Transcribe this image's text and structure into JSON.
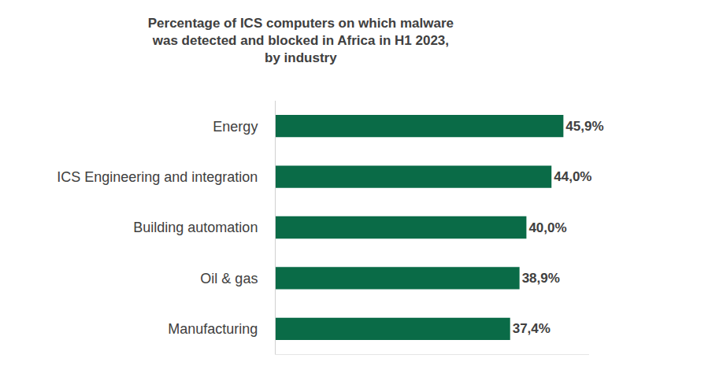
{
  "chart_data": {
    "type": "bar",
    "orientation": "horizontal",
    "title": "Percentage of ICS computers on which malware\nwas detected and blocked in Africa in H1 2023,\nby industry",
    "categories": [
      "Energy",
      "ICS Engineering and integration",
      "Building automation",
      "Oil & gas",
      "Manufacturing"
    ],
    "values": [
      45.9,
      44.0,
      40.0,
      38.9,
      37.4
    ],
    "value_labels": [
      "45,9%",
      "44,0%",
      "40,0%",
      "38,9%",
      "37,4%"
    ],
    "data_labels": true,
    "color": "#0a6b47",
    "xlim": [
      0,
      50
    ],
    "grid": false,
    "tick_labels": "y"
  }
}
